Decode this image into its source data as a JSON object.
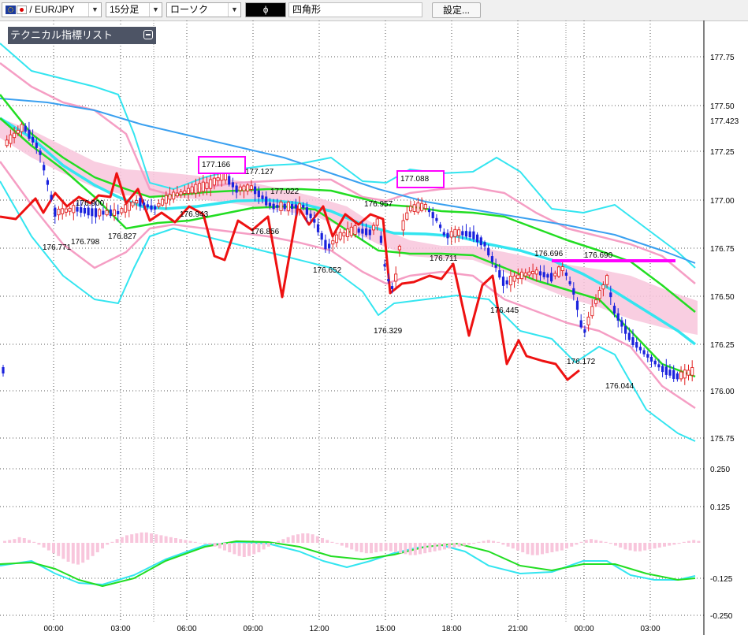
{
  "toolbar": {
    "symbol": "/ EUR/JPY",
    "timeframe": "15分足",
    "chart_style": "ローソク",
    "color_swatch": "ɸ",
    "draw_tool": "四角形",
    "settings_label": "設定..."
  },
  "panel": {
    "title": "テクニカル指標リスト"
  },
  "colors": {
    "bb_outer": "#33e5f0",
    "bb_inner": "#f59ec4",
    "ma_green": "#22dd22",
    "ma_cyan": "#33e5f0",
    "ma_blue": "#3aa0f0",
    "lagging_red": "#ee1111",
    "cloud": "#f8c6dc",
    "up_candle": "#e02020",
    "down_candle": "#1a22dd",
    "highlight": "#ff00ff"
  },
  "chart_data": {
    "type": "candlestick",
    "y_ticks": [
      "177.75",
      "177.50",
      "177.423",
      "177.25",
      "177.00",
      "176.75",
      "176.50",
      "176.25",
      "176.00",
      "175.75"
    ],
    "osc_ticks": [
      "0.250",
      "0.125",
      "-0.125",
      "-0.250"
    ],
    "x_ticks": [
      "00:00",
      "03:00",
      "06:00",
      "09:00",
      "12:00",
      "15:00",
      "18:00",
      "21:00",
      "00:00",
      "03:00"
    ],
    "price_labels": [
      "176.771",
      "176.900",
      "176.798",
      "176.827",
      "177.166",
      "176.943",
      "177.127",
      "176.856",
      "177.022",
      "176.652",
      "176.957",
      "177.088",
      "176.329",
      "176.711",
      "176.445",
      "176.696",
      "176.690",
      "176.172",
      "176.044"
    ],
    "boxed_labels": [
      "177.166",
      "177.088"
    ],
    "horizontal_line_value": 176.69
  }
}
